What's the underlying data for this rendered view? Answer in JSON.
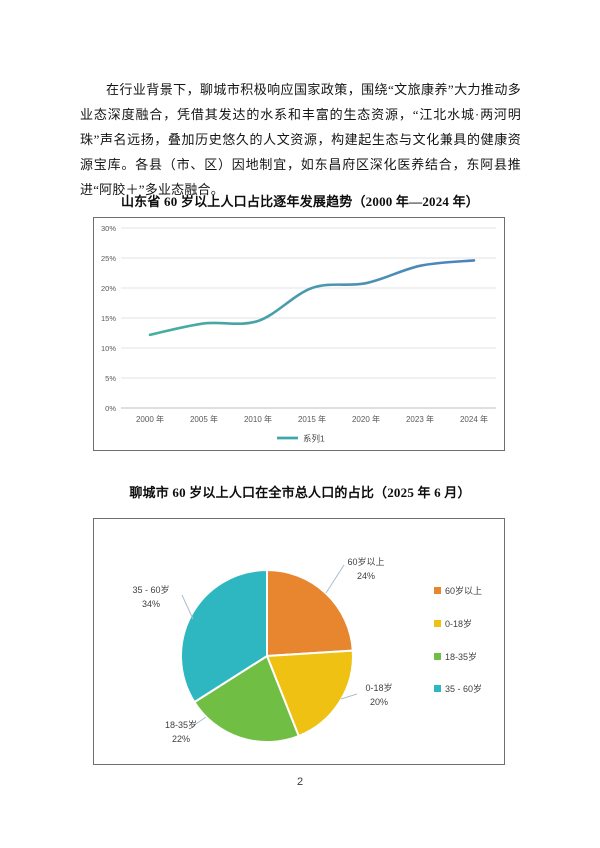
{
  "document": {
    "paragraph": "在行业背景下，聊城市积极响应国家政策，围绕“文旅康养”大力推动多业态深度融合，凭借其发达的水系和丰富的生态资源，“江北水城·两河明珠”声名远扬，叠加历史悠久的人文资源，构建起生态与文化兼具的健康资源宝库。各县（市、区）因地制宜，如东昌府区深化医养结合，东阿县推进“阿胶＋”多业态融合。",
    "line_chart_title": "山东省 60 岁以上人口占比逐年发展趋势（2000 年—2024 年）",
    "pie_chart_title": "聊城市 60 岁以上人口在全市总人口的占比（2025 年 6 月）",
    "page_number": "2"
  },
  "chart_data": [
    {
      "type": "line",
      "title": "山东省 60 岁以上人口占比逐年发展趋势（2000 年—2024 年）",
      "x": [
        "2000 年",
        "2005 年",
        "2010 年",
        "2015 年",
        "2020 年",
        "2023 年",
        "2024 年"
      ],
      "series": [
        {
          "name": "系列1",
          "values": [
            12.2,
            14.1,
            14.5,
            20.0,
            20.8,
            23.7,
            24.6
          ]
        }
      ],
      "ylabel": "",
      "xlabel": "",
      "ylim": [
        0,
        30
      ],
      "yticks": [
        "0%",
        "5%",
        "10%",
        "15%",
        "20%",
        "25%",
        "30%"
      ],
      "grid": true,
      "legend_position": "bottom",
      "line_color_start": "#45B19D",
      "line_color_end": "#4E81BD",
      "legend_swatch_color": "#3FA8AD",
      "gridline_color": "#E3E3E3",
      "axisline_color": "#BFBFBF"
    },
    {
      "type": "pie",
      "title": "聊城市 60 岁以上人口在全市总人口的占比（2025 年 6 月）",
      "labels": [
        "60岁以上",
        "0-18岁",
        "18-35岁",
        "35 - 60岁"
      ],
      "values": [
        24,
        20,
        22,
        34
      ],
      "colors": [
        "#E8862F",
        "#EFC113",
        "#70BE44",
        "#2EB7C0"
      ],
      "start_angle_deg": 0,
      "direction": "clockwise",
      "legend_position": "right",
      "leader_line_color": "#A9BDD3"
    }
  ]
}
